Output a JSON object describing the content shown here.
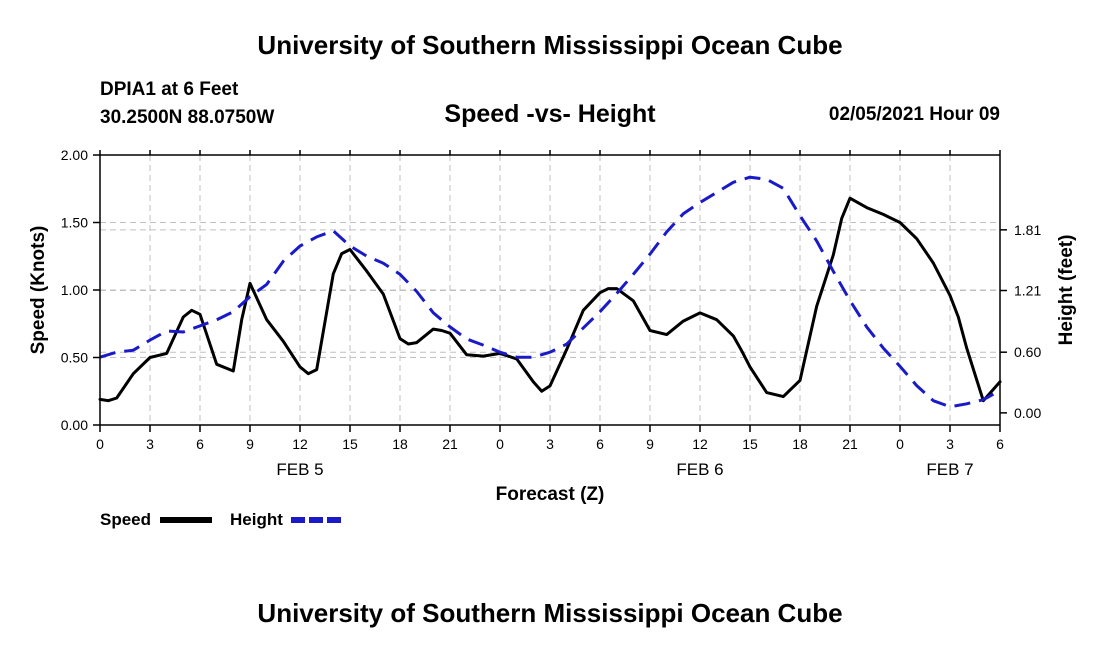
{
  "header": {
    "title_top": "University of Southern Mississippi Ocean Cube",
    "station_name": "DPIA1 at 6 Feet",
    "station_coords": "30.2500N 88.0750W",
    "subtitle": "Speed -vs- Height",
    "datetime": "02/05/2021 Hour 09",
    "title_bottom": "University of Southern Mississippi Ocean Cube"
  },
  "colors": {
    "speed": "#000000",
    "height": "#1a1ac8",
    "grid": "#c0c0c0"
  },
  "chart_data": {
    "type": "line",
    "title": "Speed -vs- Height",
    "xlabel": "Forecast (Z)",
    "ylabel": "Speed (Knots)",
    "y2label": "Height (feet)",
    "xlim": [
      0,
      54
    ],
    "ylim": [
      0,
      2.0
    ],
    "y2lim": [
      -0.12,
      2.55
    ],
    "x_ticks": [
      0,
      3,
      6,
      9,
      12,
      15,
      18,
      21,
      24,
      27,
      30,
      33,
      36,
      39,
      42,
      45,
      48,
      51,
      54
    ],
    "x_tick_labels": [
      "0",
      "3",
      "6",
      "9",
      "12",
      "15",
      "18",
      "21",
      "0",
      "3",
      "6",
      "9",
      "12",
      "15",
      "18",
      "21",
      "0",
      "3",
      "6"
    ],
    "day_labels": [
      {
        "x": 12,
        "label": "FEB 5"
      },
      {
        "x": 36,
        "label": "FEB 6"
      },
      {
        "x": 51,
        "label": "FEB 7"
      }
    ],
    "y_ticks": [
      0,
      0.5,
      1.0,
      1.5,
      2.0
    ],
    "y_tick_labels": [
      "0.00",
      "0.50",
      "1.00",
      "1.50",
      "2.00"
    ],
    "y2_ticks": [
      0,
      0.6,
      1.21,
      1.81
    ],
    "y2_tick_labels": [
      "0.00",
      "0.60",
      "1.21",
      "1.81"
    ],
    "grid": true,
    "legend": {
      "placement": "bottom-left",
      "speed_label": "Speed",
      "height_label": "Height"
    },
    "series": [
      {
        "name": "Speed",
        "axis": "left",
        "style": "solid",
        "x": [
          0,
          0.5,
          1,
          2,
          3,
          4,
          5,
          5.5,
          6,
          7,
          8,
          8.5,
          9,
          10,
          11,
          12,
          12.5,
          13,
          14,
          14.5,
          15,
          16,
          17,
          18,
          18.5,
          19,
          20,
          20.5,
          21,
          22,
          23,
          24,
          25,
          26,
          26.5,
          27,
          28,
          29,
          30,
          30.5,
          31,
          32,
          33,
          34,
          35,
          36,
          37,
          38,
          38.5,
          39,
          40,
          41,
          42,
          43,
          44,
          44.5,
          45,
          46,
          47,
          48,
          49,
          50,
          51,
          51.5,
          52,
          53,
          54
        ],
        "values": [
          0.19,
          0.18,
          0.2,
          0.38,
          0.5,
          0.53,
          0.8,
          0.85,
          0.82,
          0.45,
          0.4,
          0.78,
          1.05,
          0.78,
          0.62,
          0.43,
          0.38,
          0.41,
          1.12,
          1.27,
          1.3,
          1.14,
          0.97,
          0.64,
          0.6,
          0.61,
          0.71,
          0.7,
          0.68,
          0.52,
          0.51,
          0.53,
          0.49,
          0.32,
          0.25,
          0.29,
          0.56,
          0.85,
          0.98,
          1.01,
          1.01,
          0.92,
          0.7,
          0.67,
          0.77,
          0.83,
          0.78,
          0.66,
          0.55,
          0.43,
          0.24,
          0.21,
          0.33,
          0.88,
          1.26,
          1.53,
          1.68,
          1.61,
          1.56,
          1.5,
          1.38,
          1.2,
          0.96,
          0.8,
          0.57,
          0.18,
          0.32
        ]
      },
      {
        "name": "Height",
        "axis": "right",
        "style": "dashed",
        "x": [
          0,
          1,
          2,
          3,
          4,
          5,
          6,
          7,
          8,
          9,
          10,
          11,
          12,
          13,
          14,
          15,
          16,
          17,
          18,
          19,
          20,
          21,
          22,
          23,
          24,
          25,
          26,
          27,
          28,
          29,
          30,
          31,
          32,
          33,
          34,
          35,
          36,
          37,
          38,
          39,
          40,
          41,
          42,
          43,
          44,
          45,
          46,
          47,
          48,
          49,
          50,
          51,
          52,
          53,
          54
        ],
        "values": [
          0.55,
          0.6,
          0.62,
          0.72,
          0.81,
          0.8,
          0.86,
          0.92,
          1.0,
          1.15,
          1.27,
          1.5,
          1.65,
          1.74,
          1.8,
          1.65,
          1.55,
          1.48,
          1.37,
          1.2,
          0.99,
          0.85,
          0.73,
          0.67,
          0.6,
          0.55,
          0.55,
          0.6,
          0.68,
          0.84,
          1.0,
          1.18,
          1.37,
          1.57,
          1.79,
          1.97,
          2.08,
          2.18,
          2.28,
          2.33,
          2.31,
          2.22,
          1.95,
          1.7,
          1.4,
          1.11,
          0.85,
          0.64,
          0.46,
          0.27,
          0.12,
          0.06,
          0.09,
          0.13,
          0.22
        ]
      }
    ]
  }
}
